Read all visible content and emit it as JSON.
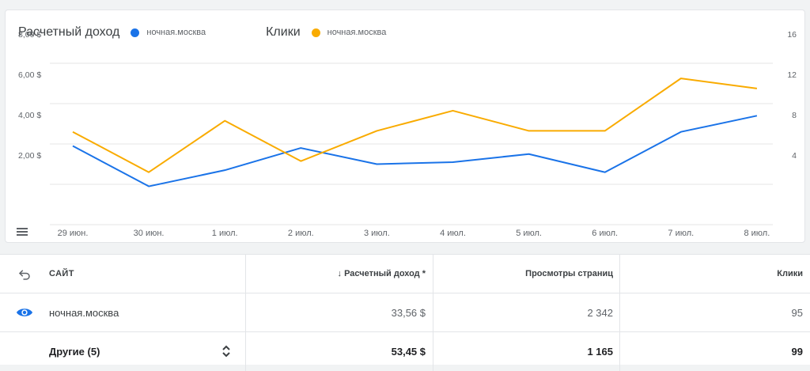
{
  "legend": {
    "metric1": "Расчетный доход",
    "metric1_series": "ночная.москва",
    "metric1_color": "#1a73e8",
    "metric2": "Клики",
    "metric2_series": "ночная.москва",
    "metric2_color": "#f9ab00"
  },
  "chart_data": {
    "type": "line",
    "categories": [
      "29 июн.",
      "30 июн.",
      "1 июл.",
      "2 июл.",
      "3 июл.",
      "4 июл.",
      "5 июл.",
      "6 июл.",
      "7 июл.",
      "8 июл."
    ],
    "series": [
      {
        "name": "Расчетный доход",
        "axis": "left",
        "color": "#1a73e8",
        "values": [
          3.9,
          1.9,
          2.7,
          3.8,
          3.0,
          3.1,
          3.5,
          2.6,
          4.6,
          5.4
        ]
      },
      {
        "name": "Клики",
        "axis": "right",
        "color": "#f9ab00",
        "values": [
          9.2,
          5.2,
          10.3,
          6.3,
          9.3,
          11.3,
          9.3,
          9.3,
          14.5,
          13.5
        ]
      }
    ],
    "y_left": {
      "ticks": [
        2,
        4,
        6,
        8
      ],
      "tick_labels": [
        "2,00 $",
        "4,00 $",
        "6,00 $",
        "8,00 $"
      ],
      "range": [
        0,
        8
      ]
    },
    "y_right": {
      "ticks": [
        4,
        8,
        12,
        16
      ],
      "tick_labels": [
        "4",
        "8",
        "12",
        "16"
      ],
      "range": [
        0,
        16
      ]
    },
    "grid": true
  },
  "table": {
    "headers": {
      "site": "САЙТ",
      "revenue": "↓ Расчетный доход *",
      "pageviews": "Просмотры страниц",
      "clicks": "Клики"
    },
    "rows": [
      {
        "site": "ночная.москва",
        "revenue": "33,56 $",
        "pageviews": "2 342",
        "clicks": "95"
      },
      {
        "site": "Другие (5)",
        "revenue": "53,45 $",
        "pageviews": "1 165",
        "clicks": "99"
      }
    ]
  }
}
